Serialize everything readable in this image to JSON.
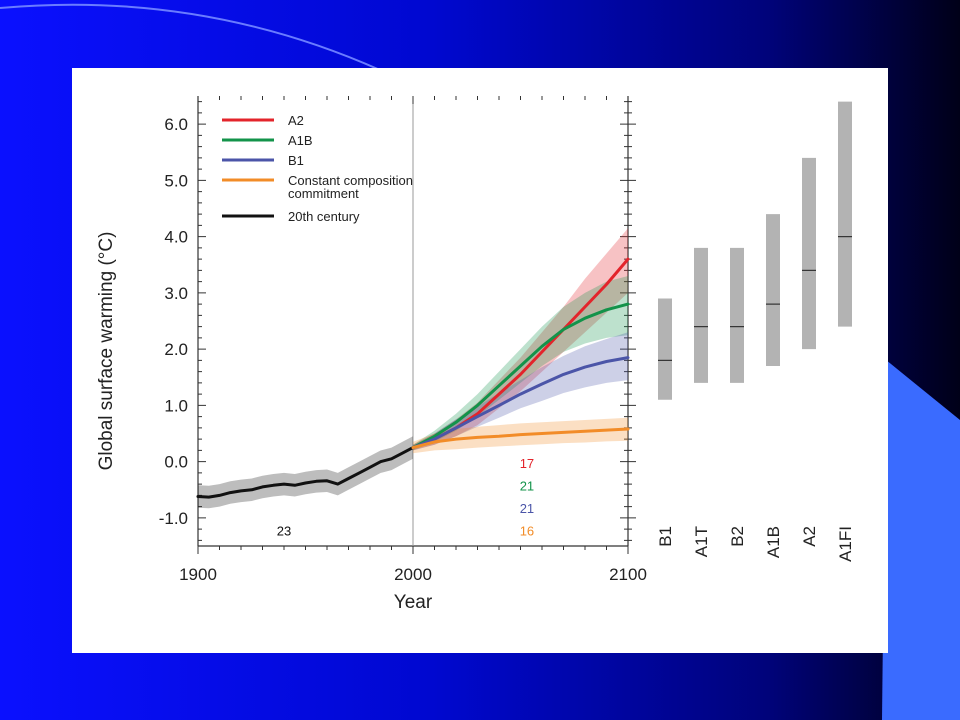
{
  "colors": {
    "slide_gradient": [
      "#0a10ff",
      "#00037a",
      "#000018"
    ],
    "a2": "#e3242b",
    "a1b": "#13934a",
    "b1": "#4b55a8",
    "commitment": "#f28c28",
    "twentieth": "#111111",
    "range_bar": "#b3b3b3"
  },
  "chart_data": {
    "type": "line",
    "xlabel": "Year",
    "ylabel": "Global surface warming (°C)",
    "xlim": [
      1900,
      2100
    ],
    "ylim": [
      -1.5,
      6.5
    ],
    "x_ticks": [
      "1900",
      "2000",
      "2100"
    ],
    "y_ticks": [
      "-1.0",
      "0.0",
      "1.0",
      "2.0",
      "3.0",
      "4.0",
      "5.0",
      "6.0"
    ],
    "legend": [
      {
        "label": "A2",
        "color": "#e3242b"
      },
      {
        "label": "A1B",
        "color": "#13934a"
      },
      {
        "label": "B1",
        "color": "#4b55a8"
      },
      {
        "label": "Constant composition",
        "label2": "commitment",
        "color": "#f28c28"
      },
      {
        "label": "20th century",
        "color": "#111111"
      }
    ],
    "series": [
      {
        "name": "20th century",
        "color": "#111111",
        "x": [
          1900,
          1905,
          1910,
          1915,
          1920,
          1925,
          1930,
          1935,
          1940,
          1945,
          1950,
          1955,
          1960,
          1965,
          1970,
          1975,
          1980,
          1985,
          1990,
          1995,
          2000
        ],
        "y": [
          -0.62,
          -0.63,
          -0.6,
          -0.55,
          -0.52,
          -0.5,
          -0.45,
          -0.42,
          -0.4,
          -0.42,
          -0.38,
          -0.35,
          -0.34,
          -0.4,
          -0.3,
          -0.2,
          -0.1,
          0.0,
          0.05,
          0.15,
          0.25
        ],
        "band": 0.2
      },
      {
        "name": "A2",
        "color": "#e3242b",
        "x": [
          2000,
          2010,
          2020,
          2030,
          2040,
          2050,
          2060,
          2070,
          2080,
          2090,
          2100
        ],
        "y": [
          0.25,
          0.4,
          0.6,
          0.85,
          1.2,
          1.55,
          1.95,
          2.35,
          2.75,
          3.15,
          3.6
        ],
        "band_low": [
          0.2,
          0.3,
          0.45,
          0.65,
          0.95,
          1.25,
          1.6,
          1.95,
          2.3,
          2.65,
          3.0
        ],
        "band_high": [
          0.3,
          0.5,
          0.75,
          1.05,
          1.45,
          1.85,
          2.3,
          2.75,
          3.25,
          3.7,
          4.15
        ]
      },
      {
        "name": "A1B",
        "color": "#13934a",
        "x": [
          2000,
          2010,
          2020,
          2030,
          2040,
          2050,
          2060,
          2070,
          2080,
          2090,
          2100
        ],
        "y": [
          0.25,
          0.45,
          0.7,
          1.0,
          1.35,
          1.7,
          2.05,
          2.35,
          2.55,
          2.7,
          2.8
        ],
        "band_low": [
          0.2,
          0.35,
          0.55,
          0.8,
          1.1,
          1.4,
          1.7,
          1.95,
          2.1,
          2.2,
          2.25
        ],
        "band_high": [
          0.3,
          0.55,
          0.85,
          1.2,
          1.6,
          2.0,
          2.4,
          2.75,
          3.0,
          3.2,
          3.3
        ]
      },
      {
        "name": "B1",
        "color": "#4b55a8",
        "x": [
          2000,
          2010,
          2020,
          2030,
          2040,
          2050,
          2060,
          2070,
          2080,
          2090,
          2100
        ],
        "y": [
          0.25,
          0.4,
          0.6,
          0.8,
          1.0,
          1.2,
          1.38,
          1.55,
          1.68,
          1.78,
          1.85
        ],
        "band_low": [
          0.2,
          0.3,
          0.45,
          0.62,
          0.78,
          0.95,
          1.08,
          1.22,
          1.32,
          1.4,
          1.45
        ],
        "band_high": [
          0.3,
          0.5,
          0.75,
          0.98,
          1.22,
          1.45,
          1.68,
          1.88,
          2.05,
          2.18,
          2.3
        ]
      },
      {
        "name": "Constant composition commitment",
        "color": "#f28c28",
        "x": [
          2000,
          2010,
          2020,
          2030,
          2040,
          2050,
          2060,
          2070,
          2080,
          2090,
          2100
        ],
        "y": [
          0.25,
          0.35,
          0.4,
          0.43,
          0.45,
          0.48,
          0.5,
          0.52,
          0.54,
          0.56,
          0.58
        ],
        "band_low": [
          0.15,
          0.2,
          0.22,
          0.25,
          0.27,
          0.29,
          0.31,
          0.33,
          0.34,
          0.36,
          0.37
        ],
        "band_high": [
          0.35,
          0.5,
          0.58,
          0.62,
          0.65,
          0.68,
          0.7,
          0.72,
          0.74,
          0.76,
          0.78
        ]
      }
    ],
    "model_counts": [
      {
        "text": "17",
        "color": "#e3242b"
      },
      {
        "text": "21",
        "color": "#13934a"
      },
      {
        "text": "21",
        "color": "#4b55a8"
      },
      {
        "text": "16",
        "color": "#f28c28"
      },
      {
        "text": "23",
        "color": "#111111"
      }
    ],
    "range_bars": [
      {
        "label": "B1",
        "low": 1.1,
        "best": 1.8,
        "high": 2.9
      },
      {
        "label": "A1T",
        "low": 1.4,
        "best": 2.4,
        "high": 3.8
      },
      {
        "label": "B2",
        "low": 1.4,
        "best": 2.4,
        "high": 3.8
      },
      {
        "label": "A1B",
        "low": 1.7,
        "best": 2.8,
        "high": 4.4
      },
      {
        "label": "A2",
        "low": 2.0,
        "best": 3.4,
        "high": 5.4
      },
      {
        "label": "A1FI",
        "low": 2.4,
        "best": 4.0,
        "high": 6.4
      }
    ]
  }
}
